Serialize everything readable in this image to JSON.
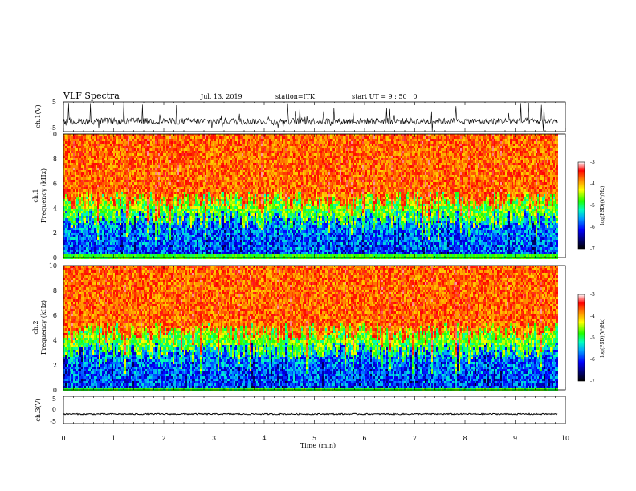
{
  "header": {
    "title": "VLF Spectra",
    "date": "Jul. 13, 2019",
    "station": "station=ITK",
    "start": "start UT =  9 : 50 : 0"
  },
  "colors": {
    "spectrogram_low": "#000000",
    "spectrogram_high": "#ff1a00",
    "waveform": "#000000",
    "axis": "#000000"
  },
  "chart_data": [
    {
      "type": "line",
      "name": "ch1-waveform",
      "ylabel": "ch.1(V)",
      "ylim": [
        -5,
        5
      ],
      "yticks": [
        "5",
        "-5"
      ],
      "xlim": [
        0,
        10
      ],
      "baseline": -1.5,
      "spike_range": [
        -5,
        5
      ]
    },
    {
      "type": "heatmap",
      "name": "ch1-spectrogram",
      "ylabel_top": "ch.1",
      "ylabel": "Frequency (kHz)",
      "ylim": [
        0,
        10
      ],
      "yticks": [
        "0",
        "2",
        "4",
        "6",
        "8",
        "10"
      ],
      "xlim": [
        0,
        10
      ],
      "colorbar": {
        "label": "log(PSD)(V²/Hz)",
        "range": [
          -7,
          -3
        ],
        "ticks": [
          "-3",
          "-4",
          "-5",
          "-6",
          "-7"
        ]
      }
    },
    {
      "type": "heatmap",
      "name": "ch2-spectrogram",
      "ylabel_top": "ch.2",
      "ylabel": "Frequency (kHz)",
      "ylim": [
        0,
        10
      ],
      "yticks": [
        "0",
        "2",
        "4",
        "6",
        "8",
        "10"
      ],
      "xlim": [
        0,
        10
      ],
      "colorbar": {
        "label": "log(PSD)(V²/Hz)",
        "range": [
          -7,
          -3
        ],
        "ticks": [
          "-3",
          "-4",
          "-5",
          "-6",
          "-7"
        ]
      }
    },
    {
      "type": "line",
      "name": "ch3-waveform",
      "ylabel": "ch.3(V)",
      "ylim": [
        -5,
        5
      ],
      "yticks": [
        "5",
        "0",
        "-5"
      ],
      "xlim": [
        0,
        10
      ],
      "baseline": -1.5
    }
  ],
  "xaxis": {
    "label": "Time (min)",
    "ticks": [
      "0",
      "1",
      "2",
      "3",
      "4",
      "5",
      "6",
      "7",
      "8",
      "9",
      "10"
    ],
    "range": [
      0,
      10
    ],
    "data_end": 9.85
  }
}
